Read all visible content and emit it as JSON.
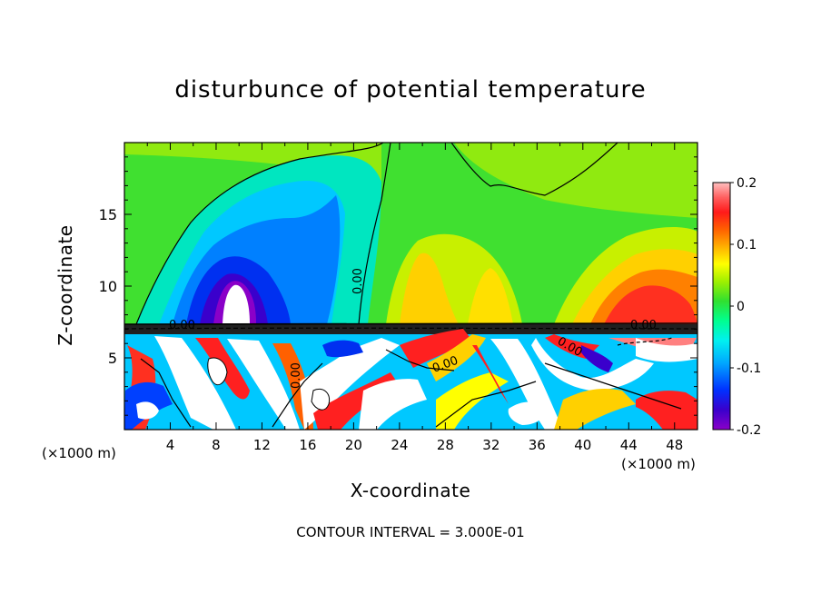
{
  "chart_data": {
    "type": "heatmap",
    "title": "disturbunce of potential temperature",
    "xlabel": "X-coordinate",
    "ylabel": "Z-coordinate",
    "x_unit_label": "(×1000 m)",
    "x_unit_label_right": "(×1000 m)",
    "footer": "CONTOUR INTERVAL = 3.000E-01",
    "xlim": [
      0,
      50
    ],
    "ylim": [
      0,
      20
    ],
    "x_ticks": [
      "4",
      "8",
      "12",
      "16",
      "20",
      "24",
      "28",
      "32",
      "36",
      "40",
      "44",
      "48"
    ],
    "y_ticks": [
      "5",
      "10",
      "15"
    ],
    "colorbar": {
      "range": [
        -0.2,
        0.2
      ],
      "tick_labels": [
        "0.2",
        "0.1",
        "0",
        "-0.1",
        "-0.2"
      ],
      "colors": [
        "#8a00c8",
        "#3a00cc",
        "#0020ff",
        "#0060ff",
        "#00a0ff",
        "#00e0ff",
        "#00ffcc",
        "#00ff80",
        "#20e020",
        "#80f000",
        "#c8f000",
        "#ffff00",
        "#ffd000",
        "#ffa000",
        "#ff6000",
        "#ff2020",
        "#ff6060",
        "#ffb0b0"
      ]
    },
    "contour_labels": [
      "0.00",
      "0.00",
      "0.00",
      "0.00",
      "0.00",
      "0.00",
      "0.00"
    ],
    "features": [
      {
        "name": "cold anomaly",
        "x": 9.5,
        "z": 11,
        "value": -0.2
      },
      {
        "name": "cold anomaly",
        "x": 17,
        "z": 14,
        "value": -0.1
      },
      {
        "name": "warm anomaly",
        "x": 25,
        "z": 10,
        "value": 0.1
      },
      {
        "name": "warm anomaly",
        "x": 46,
        "z": 9.5,
        "value": 0.15
      },
      {
        "name": "warm anomaly",
        "x": 29,
        "z": 11,
        "value": 0.05
      }
    ]
  }
}
